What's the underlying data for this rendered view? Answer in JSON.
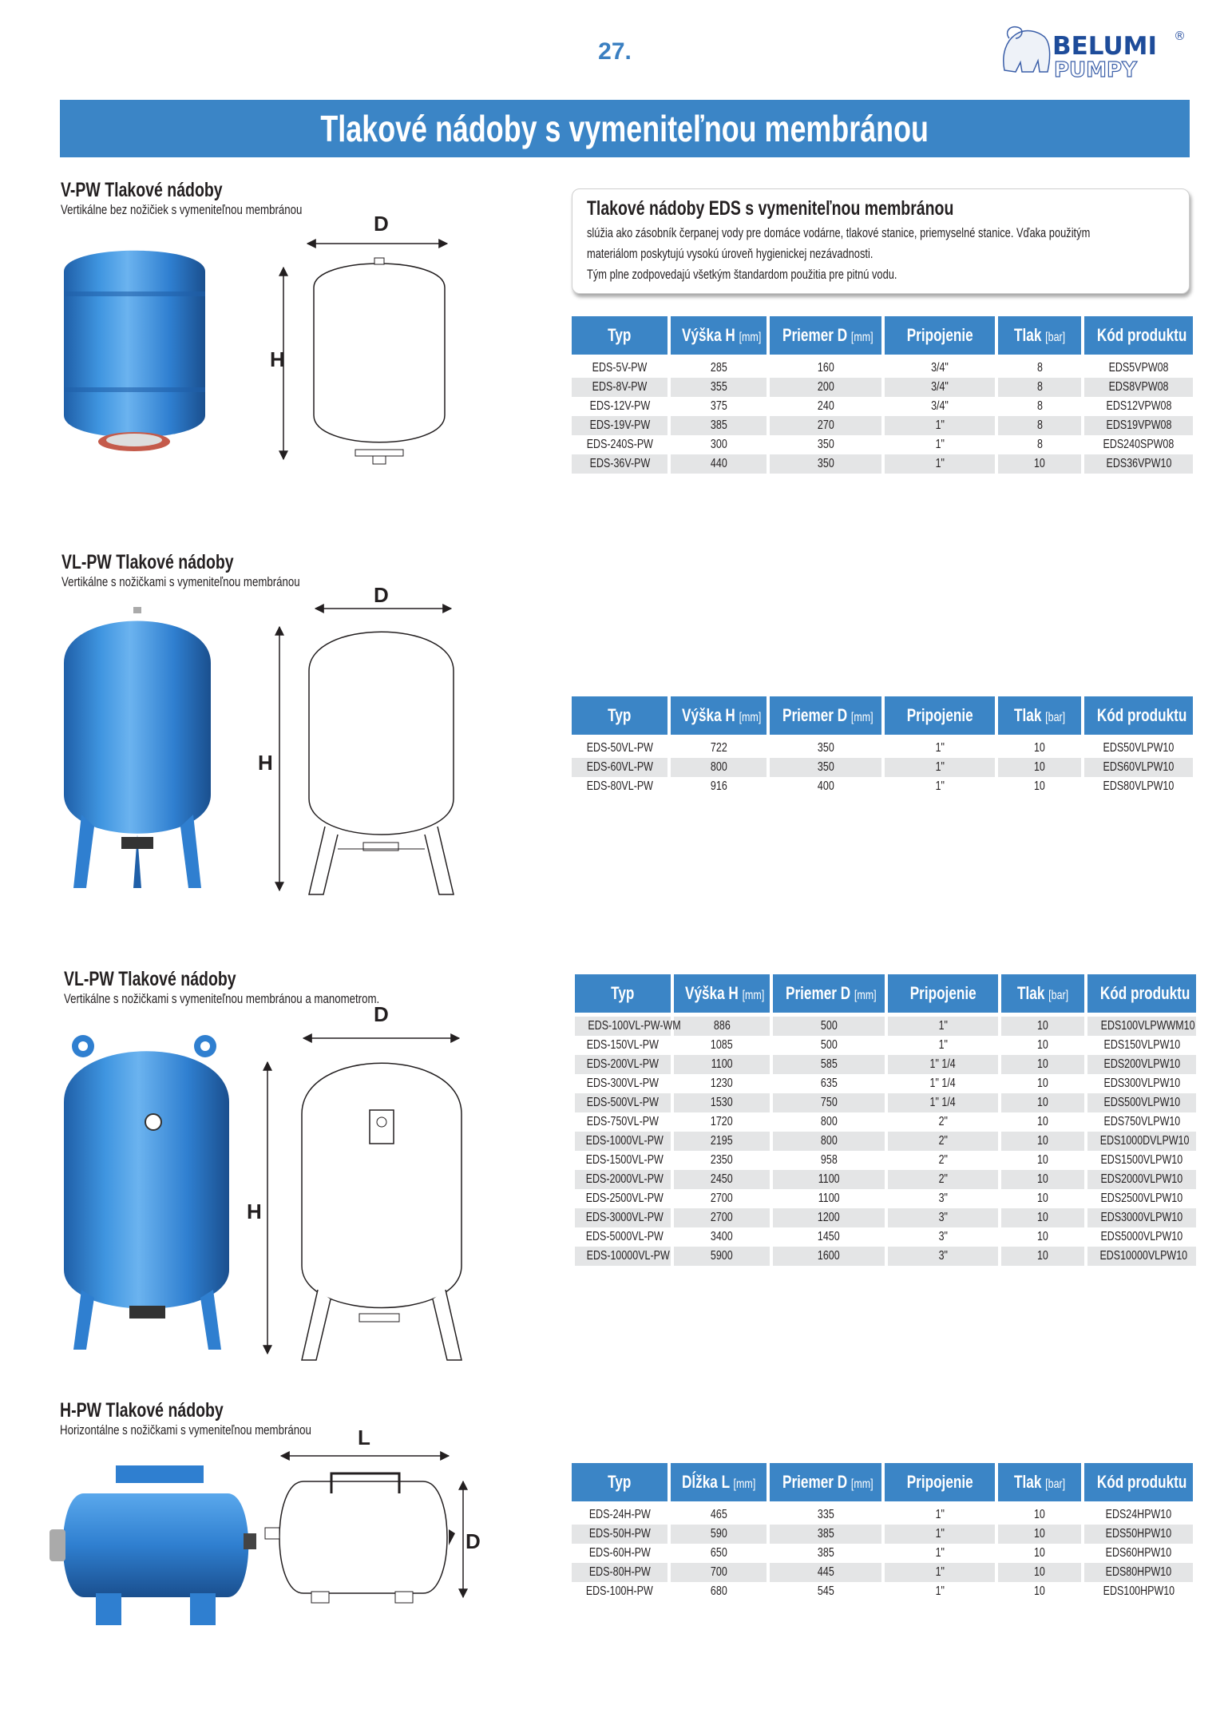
{
  "page_number": "27.",
  "logo": {
    "text_top": "BELUMI",
    "text_bottom": "PUMPY",
    "mark": "®"
  },
  "title": "Tlakové nádoby s vymeniteľnou membránou",
  "info_box": {
    "title": "Tlakové nádoby EDS s vymeniteľnou membránou",
    "lines": [
      "slúžia ako zásobník čerpanej vody pre domáce vodárne, tlakové stanice, priemyselné stanice. Vďaka použitým",
      "materiálom poskytujú vysokú úroveň hygienickej nezávadnosti.",
      "Tým plne zodpovedajú všetkým štandardom použitia pre pitnú vodu."
    ]
  },
  "colors": {
    "accent": "#3b85c6",
    "row_shade": "#e4e5e6",
    "tank_blue": "#2f7fd0"
  },
  "sections": [
    {
      "title": "V-PW  Tlakové nádoby",
      "subtitle": "Vertikálne bez nožičiek s vymeniteľnou membránou",
      "dims": [
        "D",
        "H"
      ],
      "headers": [
        [
          "Typ",
          ""
        ],
        [
          "Výška H",
          "[mm]"
        ],
        [
          "Priemer D",
          "[mm]"
        ],
        [
          "Pripojenie",
          ""
        ],
        [
          "Tlak",
          "[bar]"
        ],
        [
          "Kód produktu",
          ""
        ]
      ],
      "rows": [
        [
          "EDS-5V-PW",
          "285",
          "160",
          "3/4\"",
          "8",
          "EDS5VPW08"
        ],
        [
          "EDS-8V-PW",
          "355",
          "200",
          "3/4\"",
          "8",
          "EDS8VPW08"
        ],
        [
          "EDS-12V-PW",
          "375",
          "240",
          "3/4\"",
          "8",
          "EDS12VPW08"
        ],
        [
          "EDS-19V-PW",
          "385",
          "270",
          "1\"",
          "8",
          "EDS19VPW08"
        ],
        [
          "EDS-240S-PW",
          "300",
          "350",
          "1\"",
          "8",
          "EDS240SPW08"
        ],
        [
          "EDS-36V-PW",
          "440",
          "350",
          "1\"",
          "10",
          "EDS36VPW10"
        ]
      ]
    },
    {
      "title": "VL-PW  Tlakové nádoby",
      "subtitle": "Vertikálne s nožičkami s vymeniteľnou membránou",
      "dims": [
        "D",
        "H"
      ],
      "headers": [
        [
          "Typ",
          ""
        ],
        [
          "Výška H",
          "[mm]"
        ],
        [
          "Priemer D",
          "[mm]"
        ],
        [
          "Pripojenie",
          ""
        ],
        [
          "Tlak",
          "[bar]"
        ],
        [
          "Kód produktu",
          ""
        ]
      ],
      "rows": [
        [
          "EDS-50VL-PW",
          "722",
          "350",
          "1\"",
          "10",
          "EDS50VLPW10"
        ],
        [
          "EDS-60VL-PW",
          "800",
          "350",
          "1\"",
          "10",
          "EDS60VLPW10"
        ],
        [
          "EDS-80VL-PW",
          "916",
          "400",
          "1\"",
          "10",
          "EDS80VLPW10"
        ]
      ]
    },
    {
      "title": "VL-PW  Tlakové nádoby",
      "subtitle": "Vertikálne s nožičkami s vymeniteľnou membránou a  manometrom.",
      "dims": [
        "D",
        "H"
      ],
      "headers": [
        [
          "Typ",
          ""
        ],
        [
          "Výška H",
          "[mm]"
        ],
        [
          "Priemer D",
          "[mm]"
        ],
        [
          "Pripojenie",
          ""
        ],
        [
          "Tlak",
          "[bar]"
        ],
        [
          "Kód produktu",
          ""
        ]
      ],
      "rows": [
        [
          "EDS-100VL-PW-WM",
          "886",
          "500",
          "1\"",
          "10",
          "EDS100VLPWWM10"
        ],
        [
          "EDS-150VL-PW",
          "1085",
          "500",
          "1\"",
          "10",
          "EDS150VLPW10"
        ],
        [
          "EDS-200VL-PW",
          "1100",
          "585",
          "1\" 1/4",
          "10",
          "EDS200VLPW10"
        ],
        [
          "EDS-300VL-PW",
          "1230",
          "635",
          "1\" 1/4",
          "10",
          "EDS300VLPW10"
        ],
        [
          "EDS-500VL-PW",
          "1530",
          "750",
          "1\" 1/4",
          "10",
          "EDS500VLPW10"
        ],
        [
          "EDS-750VL-PW",
          "1720",
          "800",
          "2\"",
          "10",
          "EDS750VLPW10"
        ],
        [
          "EDS-1000VL-PW",
          "2195",
          "800",
          "2\"",
          "10",
          "EDS1000DVLPW10"
        ],
        [
          "EDS-1500VL-PW",
          "2350",
          "958",
          "2\"",
          "10",
          "EDS1500VLPW10"
        ],
        [
          "EDS-2000VL-PW",
          "2450",
          "1100",
          "2\"",
          "10",
          "EDS2000VLPW10"
        ],
        [
          "EDS-2500VL-PW",
          "2700",
          "1100",
          "3\"",
          "10",
          "EDS2500VLPW10"
        ],
        [
          "EDS-3000VL-PW",
          "2700",
          "1200",
          "3\"",
          "10",
          "EDS3000VLPW10"
        ],
        [
          "EDS-5000VL-PW",
          "3400",
          "1450",
          "3\"",
          "10",
          "EDS5000VLPW10"
        ],
        [
          "EDS-10000VL-PW",
          "5900",
          "1600",
          "3\"",
          "10",
          "EDS10000VLPW10"
        ]
      ]
    },
    {
      "title": "H-PW  Tlakové nádoby",
      "subtitle": "Horizontálne s nožičkami s vymeniteľnou membránou",
      "dims": [
        "L",
        "D"
      ],
      "headers": [
        [
          "Typ",
          ""
        ],
        [
          "Dĺžka L",
          "[mm]"
        ],
        [
          "Priemer D",
          "[mm]"
        ],
        [
          "Pripojenie",
          ""
        ],
        [
          "Tlak",
          "[bar]"
        ],
        [
          "Kód produktu",
          ""
        ]
      ],
      "rows": [
        [
          "EDS-24H-PW",
          "465",
          "335",
          "1\"",
          "10",
          "EDS24HPW10"
        ],
        [
          "EDS-50H-PW",
          "590",
          "385",
          "1\"",
          "10",
          "EDS50HPW10"
        ],
        [
          "EDS-60H-PW",
          "650",
          "385",
          "1\"",
          "10",
          "EDS60HPW10"
        ],
        [
          "EDS-80H-PW",
          "700",
          "445",
          "1\"",
          "10",
          "EDS80HPW10"
        ],
        [
          "EDS-100H-PW",
          "680",
          "545",
          "1\"",
          "10",
          "EDS100HPW10"
        ]
      ]
    }
  ]
}
